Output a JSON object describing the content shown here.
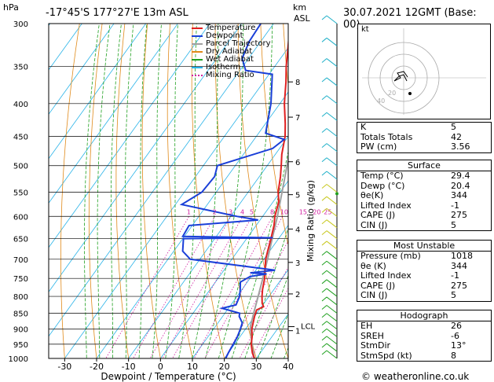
{
  "header": {
    "location": "-17°45'S  177°27'E  13m  ASL",
    "datetime": "30.07.2021  12GMT  (Base: 00)",
    "hpa_label": "hPa",
    "km_label": "km",
    "asl_label": "ASL",
    "kt_label": "kt"
  },
  "legend": [
    {
      "label": "Temperature",
      "color": "#e02020",
      "style": "solid"
    },
    {
      "label": "Dewpoint",
      "color": "#1a3fd8",
      "style": "solid"
    },
    {
      "label": "Parcel Trajectory",
      "color": "#a0a0a0",
      "style": "solid"
    },
    {
      "label": "Dry Adiabat",
      "color": "#e08a1a",
      "style": "solid"
    },
    {
      "label": "Wet Adiabat",
      "color": "#1fa01f",
      "style": "solid"
    },
    {
      "label": "Isotherm",
      "color": "#29b3e8",
      "style": "solid"
    },
    {
      "label": "Mixing Ratio",
      "color": "#d01fa0",
      "style": "dotted"
    }
  ],
  "chart_data": {
    "type": "line",
    "subtype": "skew-T log-P",
    "xlabel": "Dewpoint / Temperature (°C)",
    "ylabel": "hPa",
    "xlim": [
      -35,
      40
    ],
    "ylim": [
      1000,
      300
    ],
    "y_scale": "log",
    "skew": "isotherms slant up-right",
    "x_ticks": [
      -30,
      -20,
      -10,
      0,
      10,
      20,
      30,
      40
    ],
    "pressure_ticks": [
      300,
      350,
      400,
      450,
      500,
      550,
      600,
      650,
      700,
      750,
      800,
      850,
      900,
      950,
      1000
    ],
    "km_ticks": [
      {
        "label": "8",
        "p": 370
      },
      {
        "label": "7",
        "p": 420
      },
      {
        "label": "6",
        "p": 493
      },
      {
        "label": "5",
        "p": 555
      },
      {
        "label": "4",
        "p": 628
      },
      {
        "label": "3",
        "p": 708
      },
      {
        "label": "2",
        "p": 793
      },
      {
        "label": "1",
        "p": 905
      }
    ],
    "lcl": {
      "label": "LCL",
      "p": 892
    },
    "mixing_ratio_labels": [
      "1",
      "2",
      "3",
      "4",
      "5",
      "8",
      "10",
      "15",
      "20",
      "25"
    ],
    "mixing_ratio_axis": "Mixing Ratio (g/kg)",
    "series": [
      {
        "name": "Temperature",
        "color": "#e02020",
        "points": [
          [
            1000,
            29.4
          ],
          [
            980,
            27.5
          ],
          [
            950,
            25.2
          ],
          [
            925,
            23.8
          ],
          [
            900,
            22.0
          ],
          [
            880,
            21.0
          ],
          [
            860,
            20.0
          ],
          [
            840,
            19.2
          ],
          [
            830,
            20.6
          ],
          [
            820,
            19.4
          ],
          [
            800,
            17.8
          ],
          [
            780,
            16.4
          ],
          [
            750,
            14.6
          ],
          [
            720,
            12.2
          ],
          [
            700,
            10.6
          ],
          [
            680,
            9.4
          ],
          [
            650,
            7.6
          ],
          [
            620,
            5.6
          ],
          [
            600,
            3.8
          ],
          [
            570,
            1.8
          ],
          [
            550,
            -0.6
          ],
          [
            520,
            -3.4
          ],
          [
            500,
            -5.6
          ],
          [
            480,
            -8.0
          ],
          [
            450,
            -11.0
          ],
          [
            430,
            -13.8
          ],
          [
            400,
            -18.6
          ],
          [
            370,
            -23.0
          ],
          [
            350,
            -26.4
          ],
          [
            330,
            -29.6
          ],
          [
            300,
            -34.8
          ]
        ]
      },
      {
        "name": "Dewpoint",
        "color": "#1a3fd8",
        "points": [
          [
            1000,
            20.4
          ],
          [
            980,
            20.0
          ],
          [
            950,
            19.6
          ],
          [
            925,
            19.2
          ],
          [
            900,
            18.4
          ],
          [
            880,
            17.6
          ],
          [
            860,
            15.2
          ],
          [
            850,
            14.6
          ],
          [
            835,
            8.0
          ],
          [
            825,
            11.6
          ],
          [
            800,
            10.8
          ],
          [
            780,
            9.4
          ],
          [
            760,
            7.8
          ],
          [
            745,
            9.6
          ],
          [
            738,
            14.2
          ],
          [
            735,
            8.8
          ],
          [
            728,
            16.0
          ],
          [
            700,
            -13.0
          ],
          [
            680,
            -17.2
          ],
          [
            650,
            -19.8
          ],
          [
            648,
            8.0
          ],
          [
            645,
            -20.5
          ],
          [
            620,
            -21.0
          ],
          [
            608,
            -0.6
          ],
          [
            600,
            -8.0
          ],
          [
            575,
            -28.0
          ],
          [
            550,
            -24.5
          ],
          [
            520,
            -24.0
          ],
          [
            500,
            -25.6
          ],
          [
            470,
            -12.2
          ],
          [
            455,
            -10.6
          ],
          [
            445,
            -17.8
          ],
          [
            400,
            -22.8
          ],
          [
            360,
            -29.0
          ],
          [
            355,
            -38.2
          ],
          [
            340,
            -42.0
          ],
          [
            320,
            -43.6
          ],
          [
            300,
            -44.0
          ]
        ]
      },
      {
        "name": "Parcel Trajectory",
        "color": "#a0a0a0",
        "points": [
          [
            1000,
            29.4
          ],
          [
            950,
            25.4
          ],
          [
            892,
            21.0
          ],
          [
            850,
            19.0
          ],
          [
            800,
            16.6
          ],
          [
            750,
            14.0
          ],
          [
            700,
            11.2
          ],
          [
            650,
            8.0
          ],
          [
            600,
            4.6
          ],
          [
            550,
            0.6
          ],
          [
            500,
            -3.8
          ],
          [
            450,
            -8.8
          ],
          [
            400,
            -14.6
          ],
          [
            350,
            -21.6
          ],
          [
            300,
            -30.4
          ]
        ]
      }
    ]
  },
  "hodograph": {
    "kt_label": "kt",
    "ring_labels": [
      "20",
      "40"
    ]
  },
  "indices": {
    "rows": [
      {
        "label": "K",
        "value": "5"
      },
      {
        "label": "Totals Totals",
        "value": "42"
      },
      {
        "label": "PW (cm)",
        "value": "3.56"
      }
    ]
  },
  "surface": {
    "title": "Surface",
    "rows": [
      {
        "label": "Temp (°C)",
        "value": "29.4"
      },
      {
        "label": "Dewp (°C)",
        "value": "20.4"
      },
      {
        "label": "θe(K)",
        "value": "344"
      },
      {
        "label": "Lifted Index",
        "value": "-1"
      },
      {
        "label": "CAPE (J)",
        "value": "275"
      },
      {
        "label": "CIN (J)",
        "value": "5"
      }
    ]
  },
  "most_unstable": {
    "title": "Most Unstable",
    "rows": [
      {
        "label": "Pressure (mb)",
        "value": "1018"
      },
      {
        "label": "θe (K)",
        "value": "344"
      },
      {
        "label": "Lifted Index",
        "value": "-1"
      },
      {
        "label": "CAPE (J)",
        "value": "275"
      },
      {
        "label": "CIN (J)",
        "value": "5"
      }
    ]
  },
  "hodograph_table": {
    "title": "Hodograph",
    "rows": [
      {
        "label": "EH",
        "value": "26"
      },
      {
        "label": "SREH",
        "value": "-6"
      },
      {
        "label": "StmDir",
        "value": "13°"
      },
      {
        "label": "StmSpd (kt)",
        "value": "8"
      }
    ]
  },
  "footer": {
    "copyright": "© weatheronline.co.uk"
  }
}
